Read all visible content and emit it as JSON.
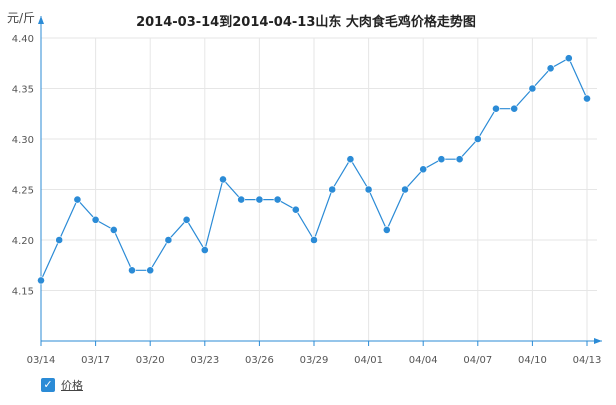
{
  "chart_data": {
    "type": "line",
    "title": "2014-03-14到2014-04-13山东  大肉食毛鸡价格走势图",
    "ylabel": "元/斤",
    "xlabel": "",
    "x": [
      "03/14",
      "03/15",
      "03/16",
      "03/17",
      "03/18",
      "03/19",
      "03/20",
      "03/21",
      "03/22",
      "03/23",
      "03/24",
      "03/25",
      "03/26",
      "03/27",
      "03/28",
      "03/29",
      "03/30",
      "03/31",
      "04/01",
      "04/02",
      "04/03",
      "04/04",
      "04/05",
      "04/06",
      "04/07",
      "04/08",
      "04/09",
      "04/10",
      "04/11",
      "04/12",
      "04/13"
    ],
    "xticks": [
      "03/14",
      "03/17",
      "03/20",
      "03/23",
      "03/26",
      "03/29",
      "04/01",
      "04/04",
      "04/07",
      "04/10",
      "04/13"
    ],
    "yticks": [
      "4.15",
      "4.20",
      "4.25",
      "4.30",
      "4.35",
      "4.40"
    ],
    "ylim": [
      4.1,
      4.4
    ],
    "grid": true,
    "legend_position": "bottom-left",
    "series": [
      {
        "name": "价格",
        "color": "#2b8bd6",
        "values": [
          4.16,
          4.2,
          4.24,
          4.22,
          4.21,
          4.17,
          4.17,
          4.2,
          4.22,
          4.19,
          4.26,
          4.24,
          4.24,
          4.24,
          4.23,
          4.2,
          4.25,
          4.28,
          4.25,
          4.21,
          4.25,
          4.27,
          4.28,
          4.28,
          4.3,
          4.33,
          4.33,
          4.35,
          4.37,
          4.38,
          4.34
        ]
      }
    ]
  },
  "legend": {
    "check": "✓"
  }
}
